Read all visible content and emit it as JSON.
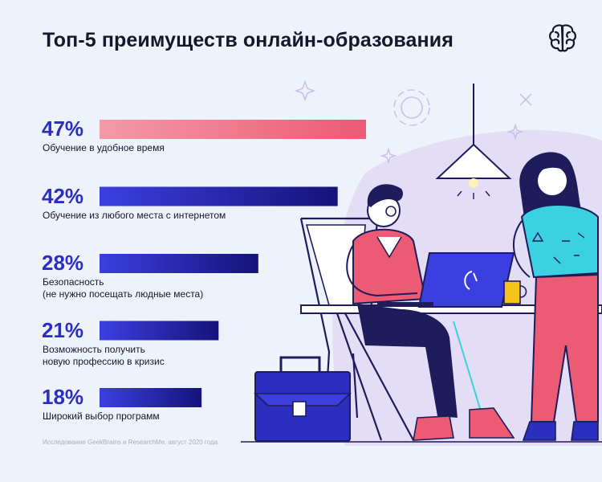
{
  "title": "Топ-5 преимуществ онлайн-образования",
  "source": "Исследование GeekBrains и ResearchMe, август 2020 года",
  "colors": {
    "first_bar_start": "#f29aa7",
    "first_bar_end": "#ec5a73",
    "bar_start": "#3b3fe0",
    "bar_end": "#15137a",
    "percent_text": "#2a2fc0"
  },
  "icons": {
    "logo": "brain-icon"
  },
  "chart_data": {
    "type": "bar",
    "orientation": "horizontal",
    "categories": [
      "Обучение в удобное время",
      "Обучение из любого места с интернетом",
      "Безопасность (не нужно посещать людные места)",
      "Возможность получить новую профессию в кризис",
      "Широкий выбор программ"
    ],
    "values": [
      47,
      42,
      28,
      21,
      18
    ],
    "value_labels": [
      "47%",
      "42%",
      "28%",
      "21%",
      "18%"
    ],
    "label_lines": [
      [
        "Обучение в удобное время"
      ],
      [
        "Обучение из любого места с интернетом"
      ],
      [
        "Безопасность",
        "(не нужно посещать людные места)"
      ],
      [
        "Возможность получить",
        "новую профессию в кризис"
      ],
      [
        "Широкий выбор программ"
      ]
    ],
    "title": "Топ-5 преимуществ онлайн-образования",
    "xlim": [
      0,
      47
    ],
    "grid": false
  }
}
